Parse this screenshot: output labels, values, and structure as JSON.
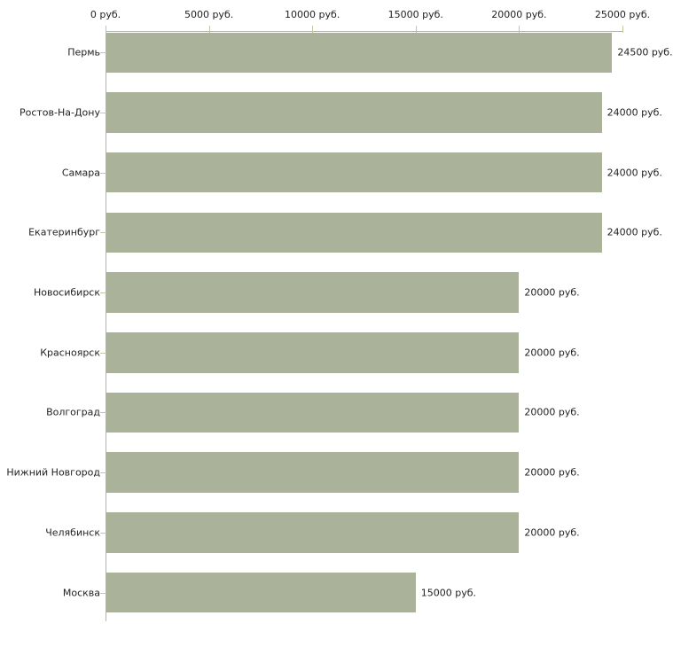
{
  "chart_data": {
    "type": "bar",
    "orientation": "horizontal",
    "title": "",
    "categories": [
      "Пермь",
      "Ростов-На-Дону",
      "Самара",
      "Екатеринбург",
      "Новосибирск",
      "Красноярск",
      "Волгоград",
      "Нижний Новгород",
      "Челябинск",
      "Москва"
    ],
    "values": [
      24500,
      24000,
      24000,
      24000,
      20000,
      20000,
      20000,
      20000,
      20000,
      15000
    ],
    "value_labels": [
      "24500 руб.",
      "24000 руб.",
      "24000 руб.",
      "24000 руб.",
      "20000 руб.",
      "20000 руб.",
      "20000 руб.",
      "20000 руб.",
      "20000 руб.",
      "15000 руб."
    ],
    "x_axis": {
      "position": "top",
      "tick_labels": [
        "0 руб.",
        "5000 руб.",
        "10000 руб.",
        "15000 руб.",
        "20000 руб.",
        "25000 руб."
      ],
      "tick_values": [
        0,
        5000,
        10000,
        15000,
        20000,
        25000
      ],
      "lim": [
        0,
        25000
      ]
    },
    "ylabel": "",
    "xlabel": "",
    "grid": false,
    "legend": false,
    "colors": {
      "bar": "#abb29a",
      "axis_line": "#b4b4b4",
      "tick": "#c4c69c",
      "text": "#222222",
      "background": "#ffffff"
    }
  }
}
